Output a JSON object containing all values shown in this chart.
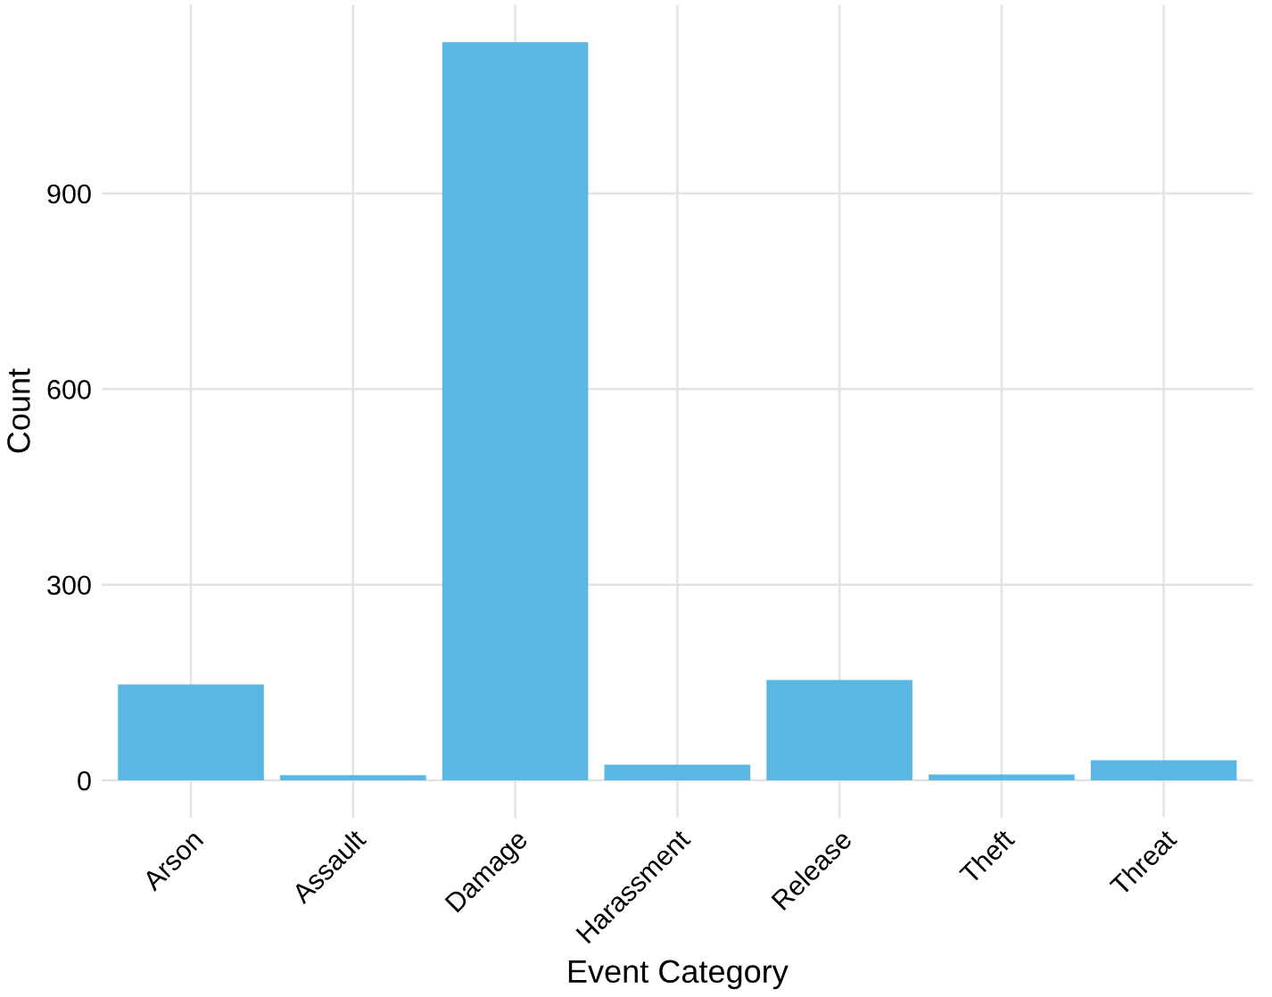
{
  "chart_data": {
    "type": "bar",
    "xlabel": "Event Category",
    "ylabel": "Count",
    "categories": [
      "Arson",
      "Assault",
      "Damage",
      "Harassment",
      "Release",
      "Theft",
      "Threat"
    ],
    "values": [
      147,
      8,
      1132,
      24,
      154,
      9,
      31
    ],
    "color": "#5ab6e2",
    "ylim": [
      -57,
      1189
    ],
    "yticks": [
      0,
      300,
      600,
      900
    ],
    "grid": true
  }
}
